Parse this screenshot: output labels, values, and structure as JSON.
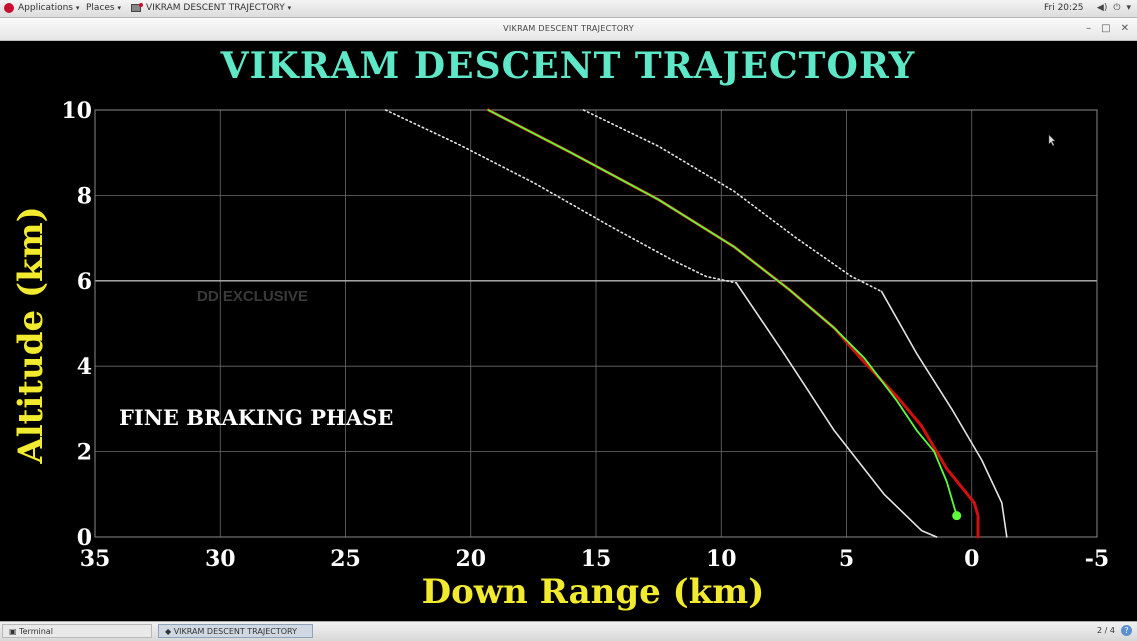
{
  "top_panel": {
    "applications": "Applications",
    "places": "Places",
    "window": "VIKRAM DESCENT TRAJECTORY",
    "clock": "Fri 20:25"
  },
  "window": {
    "title": "VIKRAM DESCENT TRAJECTORY"
  },
  "taskbar": {
    "terminal": "Terminal",
    "active_window": "VIKRAM DESCENT TRAJECTORY",
    "workspace": "2 / 4",
    "help": "?"
  },
  "overlay": {
    "watermark": "DD EXCLUSIVE",
    "phase": "FINE BRAKING PHASE"
  },
  "colors": {
    "title": "#5ee8c8",
    "axis_label": "#f2ea2e",
    "plan": "#d10f0f",
    "actual": "#5cff3a",
    "bound": "#e4e4e4",
    "grid": "#6c6c6c"
  },
  "chart_data": {
    "type": "line",
    "title": "VIKRAM DESCENT TRAJECTORY",
    "xlabel": "Down Range (km)",
    "ylabel": "Altitude (km)",
    "xlim": [
      35,
      -5
    ],
    "ylim": [
      0,
      10
    ],
    "x_ticks": [
      35,
      30,
      25,
      20,
      15,
      10,
      5,
      0,
      -5
    ],
    "y_ticks": [
      0,
      2,
      4,
      6,
      8,
      10
    ],
    "x_tick_labels": [
      "35",
      "30",
      "25",
      "20",
      "15",
      "10",
      "5",
      "0",
      "-5"
    ],
    "y_tick_labels": [
      "0",
      "2",
      "4",
      "6",
      "8",
      "10"
    ],
    "grid": true,
    "series": [
      {
        "style": "dotted",
        "color": "#e4e4e4",
        "x": [
          23.4,
          20.5,
          17.5,
          14.5,
          12.0,
          10.6,
          9.4
        ],
        "y": [
          10.0,
          9.2,
          8.3,
          7.3,
          6.5,
          6.1,
          5.95
        ]
      },
      {
        "style": "solid",
        "color": "#e4e4e4",
        "x": [
          9.4,
          7.5,
          5.5,
          3.5,
          2.0,
          1.4
        ],
        "y": [
          5.95,
          4.3,
          2.5,
          1.0,
          0.15,
          0.0
        ]
      },
      {
        "style": "dotted",
        "color": "#e4e4e4",
        "x": [
          15.5,
          12.5,
          9.5,
          7.0,
          4.8,
          3.6
        ],
        "y": [
          10.0,
          9.15,
          8.1,
          7.0,
          6.1,
          5.75
        ]
      },
      {
        "style": "solid",
        "color": "#e4e4e4",
        "x": [
          3.6,
          2.2,
          0.8,
          -0.4,
          -1.2,
          -1.4
        ],
        "y": [
          5.75,
          4.3,
          3.0,
          1.8,
          0.8,
          0.0
        ]
      },
      {
        "style": "solid",
        "color": "#d10f0f",
        "x": [
          19.3,
          16.0,
          12.5,
          9.5,
          7.3,
          5.5,
          4.3,
          3.0,
          2.0,
          1.0,
          -0.1,
          -0.25,
          -0.25
        ],
        "y": [
          10.0,
          9.0,
          7.9,
          6.8,
          5.8,
          4.9,
          4.1,
          3.3,
          2.6,
          1.6,
          0.8,
          0.5,
          0.0
        ]
      },
      {
        "style": "solid",
        "color": "#5cff3a",
        "x": [
          19.3,
          16.0,
          12.5,
          9.5,
          7.3,
          5.5,
          4.3,
          3.0,
          2.2,
          1.5,
          1.0,
          0.6
        ],
        "y": [
          10.0,
          9.0,
          7.9,
          6.8,
          5.8,
          4.9,
          4.2,
          3.2,
          2.5,
          2.0,
          1.3,
          0.5
        ]
      }
    ],
    "current_point": {
      "x": 0.6,
      "y": 0.5,
      "color": "#5cff3a"
    }
  }
}
